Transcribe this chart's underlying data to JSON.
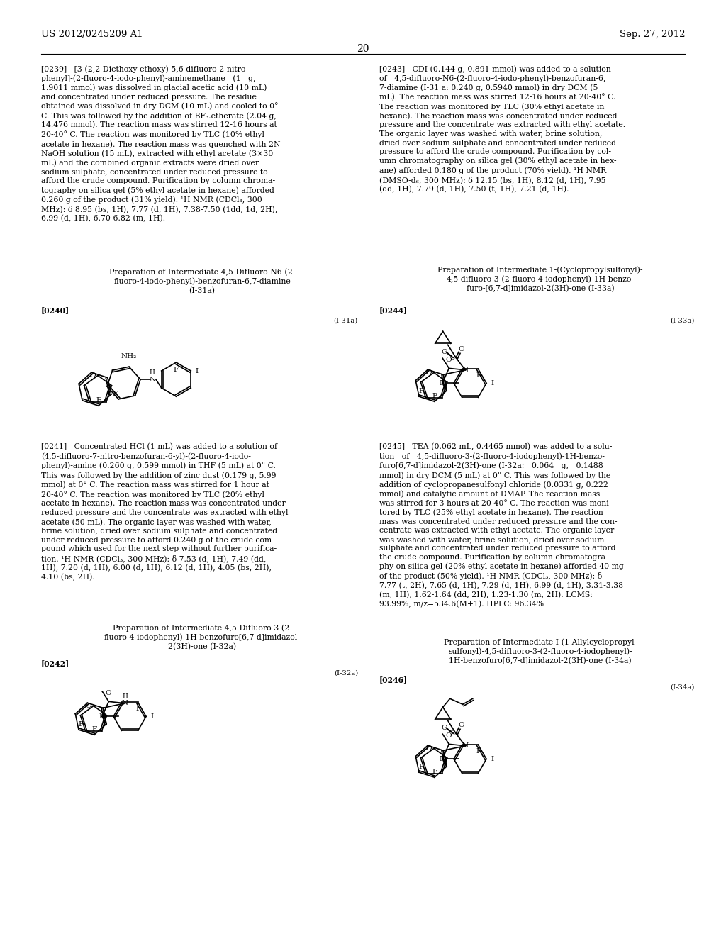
{
  "bg_color": "#ffffff",
  "header_left": "US 2012/0245209 A1",
  "header_right": "Sep. 27, 2012",
  "page_number": "20"
}
